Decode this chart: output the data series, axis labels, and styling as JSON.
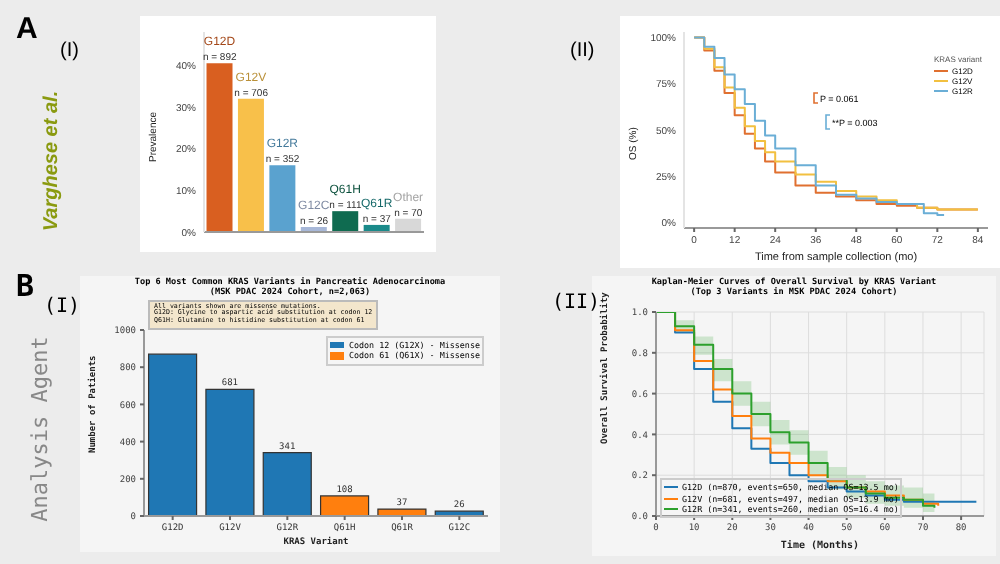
{
  "chart_data": [
    {
      "type": "bar",
      "ylabel": "Prevalence",
      "categories": [
        "G12D",
        "G12V",
        "G12R",
        "G12C",
        "Q61H",
        "Q61R",
        "Other"
      ],
      "values": [
        40.5,
        32,
        16,
        1.2,
        5,
        1.7,
        3.2
      ],
      "colors": [
        "#d95f20",
        "#f8c04a",
        "#5aa2cf",
        "#a8b8d8",
        "#0f6b50",
        "#1a8a8a",
        "#d8d8d8"
      ],
      "ylim": [
        0,
        48
      ],
      "yticks": [
        {
          "value": 0,
          "label": "0%"
        },
        {
          "value": 10,
          "label": "10%"
        },
        {
          "value": 20,
          "label": "20%"
        },
        {
          "value": 30,
          "label": "30%"
        },
        {
          "value": 40,
          "label": "40%"
        }
      ],
      "tick_labels": "y",
      "grid": false,
      "legend": false,
      "annotations": [
        "A",
        "(I)",
        "Varghese et al.",
        {
          "text": "n = 892",
          "x": "G12D",
          "y": 40.5
        },
        {
          "text": "n = 706",
          "x": "G12V",
          "y": 32
        },
        {
          "text": "n = 352",
          "x": "G12R",
          "y": 16
        },
        {
          "text": "n = 26",
          "x": "G12C",
          "y": 1.2
        },
        {
          "text": "n = 111",
          "x": "Q61H",
          "y": 5
        },
        {
          "text": "n = 37",
          "x": "Q61R",
          "y": 1.7
        },
        {
          "text": "n = 70",
          "x": "Other",
          "y": 3.2
        }
      ]
    },
    {
      "type": "step",
      "xlabel": "Time from sample collection (mo)",
      "ylabel": "OS (%)",
      "legend_title": "KRAS variant",
      "series": [
        {
          "name": "G12D",
          "color": "#e07030",
          "x": [
            0,
            3,
            6,
            9,
            12,
            15,
            18,
            21,
            24,
            30,
            36,
            42,
            48,
            54,
            60,
            66,
            72,
            84
          ],
          "values": [
            100,
            93,
            82,
            70,
            58,
            48,
            40,
            33,
            27,
            20,
            16,
            14,
            12,
            10,
            9,
            8,
            7,
            7
          ]
        },
        {
          "name": "G12V",
          "color": "#f2c040",
          "x": [
            0,
            3,
            6,
            9,
            12,
            15,
            18,
            21,
            24,
            30,
            36,
            42,
            48,
            54,
            60,
            66,
            72,
            84
          ],
          "values": [
            100,
            94,
            84,
            73,
            62,
            52,
            44,
            38,
            33,
            26,
            22,
            17,
            14,
            12,
            10,
            8,
            7,
            7
          ]
        },
        {
          "name": "G12R",
          "color": "#6aaed6",
          "x": [
            0,
            3,
            6,
            9,
            12,
            15,
            18,
            21,
            24,
            30,
            36,
            42,
            48,
            54,
            60,
            66,
            68,
            72,
            74
          ],
          "values": [
            100,
            95,
            89,
            80,
            72,
            64,
            55,
            47,
            40,
            31,
            20,
            15,
            13,
            11,
            10,
            10,
            5,
            4,
            4
          ]
        }
      ],
      "xlim": [
        -3,
        87
      ],
      "ylim": [
        -3,
        103
      ],
      "xticks": [
        0,
        12,
        24,
        36,
        48,
        60,
        72,
        84
      ],
      "yticks": [
        {
          "value": 0,
          "label": "0%"
        },
        {
          "value": 25,
          "label": "25%"
        },
        {
          "value": 50,
          "label": "50%"
        },
        {
          "value": 75,
          "label": "75%"
        },
        {
          "value": 100,
          "label": "100%"
        }
      ],
      "grid": false,
      "legend": "top right",
      "annotations": [
        "(II)",
        "P = 0.061",
        "**P = 0.003"
      ]
    },
    {
      "type": "bar",
      "title": "Top 6 Most Common KRAS Variants in Pancreatic Adenocarcinoma",
      "subtitle": "(MSK PDAC 2024 Cohort, n=2,063)",
      "xlabel": "KRAS Variant",
      "ylabel": "Number of Patients",
      "categories": [
        "G12D",
        "G12V",
        "G12R",
        "Q61H",
        "Q61R",
        "G12C"
      ],
      "stacked": true,
      "series": [
        {
          "name": "Codon 12 (G12X) - Missense",
          "color": "#1f77b4",
          "values": [
            870,
            681,
            341,
            null,
            null,
            26
          ],
          "value_labels": [
            null,
            "681",
            "341",
            null,
            null,
            "26"
          ]
        },
        {
          "name": "Codon 61 (Q61X) - Missense",
          "color": "#ff7f0e",
          "values": [
            null,
            null,
            null,
            108,
            37,
            null
          ],
          "value_labels": [
            null,
            null,
            null,
            "108",
            "37",
            null
          ]
        }
      ],
      "ylim": [
        0,
        1000
      ],
      "yticks": [
        0,
        200,
        400,
        600,
        800,
        1000
      ],
      "grid": false,
      "legend": "top right",
      "annotations": [
        "B",
        "(I)",
        "Analysis Agent",
        "All variants shown are missense mutations.\nG12D: Glycine to aspartic acid substitution at codon 12\nQ61H: Glutamine to histidine substitution at codon 61"
      ]
    },
    {
      "type": "step",
      "title": "Kaplan-Meier Curves of Overall Survival by KRAS Variant",
      "subtitle": "(Top 3 Variants in MSK PDAC 2024 Cohort)",
      "xlabel": "Time (Months)",
      "ylabel": "Overall Survival Probability",
      "x": [
        0,
        5,
        10,
        15,
        20,
        25,
        30,
        35,
        40,
        45,
        50,
        55,
        60,
        65,
        70,
        84
      ],
      "series": [
        {
          "name": "G12D (n=870, events=650, median OS=13.5 mo)",
          "color": "#1f77b4",
          "values": [
            1,
            0.9,
            0.72,
            0.56,
            0.43,
            0.33,
            0.26,
            0.2,
            0.17,
            0.14,
            0.12,
            0.1,
            0.08,
            0.07,
            0.07,
            0.07
          ]
        },
        {
          "name": "G12V (n=681, events=497, median OS=13.9 mo)",
          "color": "#ff7f0e",
          "x": [
            0,
            5,
            10,
            15,
            20,
            25,
            30,
            35,
            40,
            45,
            50,
            55,
            60,
            65,
            70,
            74
          ],
          "values": [
            1,
            0.91,
            0.76,
            0.62,
            0.49,
            0.38,
            0.31,
            0.26,
            0.2,
            0.17,
            0.14,
            0.12,
            0.1,
            0.08,
            0.06,
            0.05
          ]
        },
        {
          "name": "G12R (n=341, events=260, median OS=16.4 mo)",
          "color": "#2ca02c",
          "x": [
            0,
            5,
            10,
            15,
            20,
            25,
            30,
            35,
            40,
            45,
            50,
            55,
            60,
            65,
            70,
            73
          ],
          "values": [
            1,
            0.93,
            0.84,
            0.72,
            0.6,
            0.5,
            0.41,
            0.36,
            0.26,
            0.18,
            0.14,
            0.11,
            0.09,
            0.08,
            0.05,
            0.04
          ],
          "lower": [
            1,
            0.9,
            0.79,
            0.66,
            0.54,
            0.44,
            0.35,
            0.3,
            0.2,
            0.13,
            0.09,
            0.06,
            0.05,
            0.04,
            0.02,
            0.01
          ],
          "upper": [
            1,
            0.96,
            0.88,
            0.77,
            0.66,
            0.56,
            0.47,
            0.42,
            0.32,
            0.24,
            0.2,
            0.17,
            0.15,
            0.14,
            0.11,
            0.1
          ]
        }
      ],
      "xlim": [
        0,
        86
      ],
      "ylim": [
        0,
        1
      ],
      "xticks": [
        0,
        10,
        20,
        30,
        40,
        50,
        60,
        70,
        80
      ],
      "yticks": [
        {
          "value": 0,
          "label": "0.0"
        },
        {
          "value": 0.2,
          "label": "0.2"
        },
        {
          "value": 0.4,
          "label": "0.4"
        },
        {
          "value": 0.6,
          "label": "0.6"
        },
        {
          "value": 0.8,
          "label": "0.8"
        },
        {
          "value": 1,
          "label": "1.0"
        }
      ],
      "grid": true,
      "legend": "bottom left",
      "annotations": [
        "(II)"
      ]
    }
  ]
}
